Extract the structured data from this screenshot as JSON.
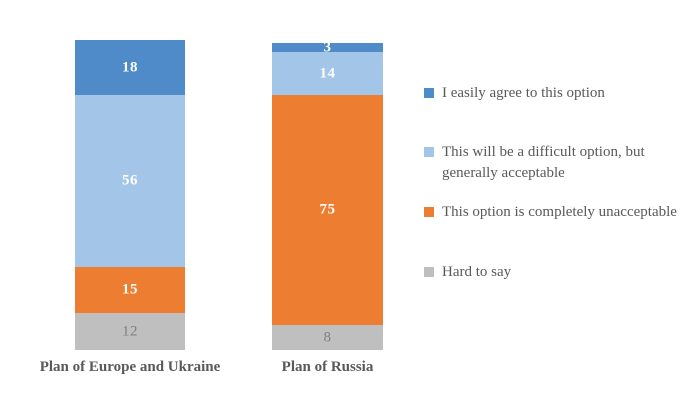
{
  "chart_data": {
    "type": "bar",
    "subtype": "stacked-column",
    "title": "",
    "categories": [
      "Plan of Europe and Ukraine",
      "Plan of Russia"
    ],
    "series": [
      {
        "name": "I easily agree to this option",
        "color": "#4E8BC8",
        "label_color": "#FFFFFF",
        "values": [
          18,
          3
        ]
      },
      {
        "name": "This will be a difficult option, but generally acceptable",
        "color": "#A2C5E8",
        "label_color": "#FFFFFF",
        "values": [
          56,
          14
        ]
      },
      {
        "name": "This option is completely unacceptable",
        "color": "#ED7D31",
        "label_color": "#FFFFFF",
        "values": [
          15,
          75
        ]
      },
      {
        "name": "Hard to say",
        "color": "#BFBFBF",
        "label_color": "#808080",
        "values": [
          12,
          8
        ]
      }
    ],
    "data_labels": true,
    "legend_position": "right",
    "grid": false,
    "axes_visible": false,
    "ylim": [
      0,
      101
    ],
    "text_color": "#595959",
    "background_color": "#FFFFFF"
  }
}
